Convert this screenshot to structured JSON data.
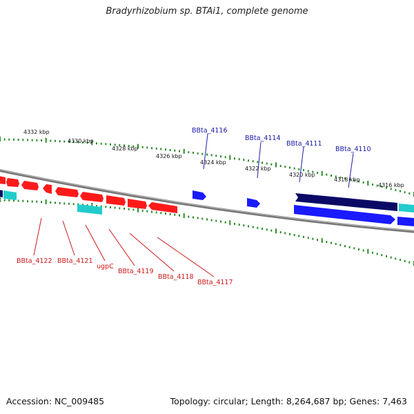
{
  "title": "Bradyrhizobium sp. BTAi1, complete genome",
  "footer": {
    "accession": "Accession: NC_009485",
    "topology": "Topology: circular; Length: 8,264,687 bp; Genes: 7,463"
  },
  "colors": {
    "backbone": "#777777",
    "tick": "#2a8a2a",
    "gene_red": "#ff1a1a",
    "gene_blue": "#1a1aff",
    "gene_navy": "#0a0a66",
    "gene_cyan": "#22cccc",
    "label_red": "#cc1a1a",
    "label_blue": "#1a1aa6"
  },
  "scale_labels": [
    "4332 kbp",
    "4330 kbp",
    "4328 kbp",
    "4326 kbp",
    "4324 kbp",
    "4322 kbp",
    "4320 kbp",
    "4318 kbp",
    "4316 kbp"
  ],
  "blue_gene_labels": [
    "BBta_4116",
    "BBta_4114",
    "BBta_4111",
    "BBta_4110"
  ],
  "red_gene_labels": [
    "BBta_4122",
    "BBta_4121",
    "ugpC",
    "BBta_4119",
    "BBta_4118",
    "BBta_4117"
  ]
}
